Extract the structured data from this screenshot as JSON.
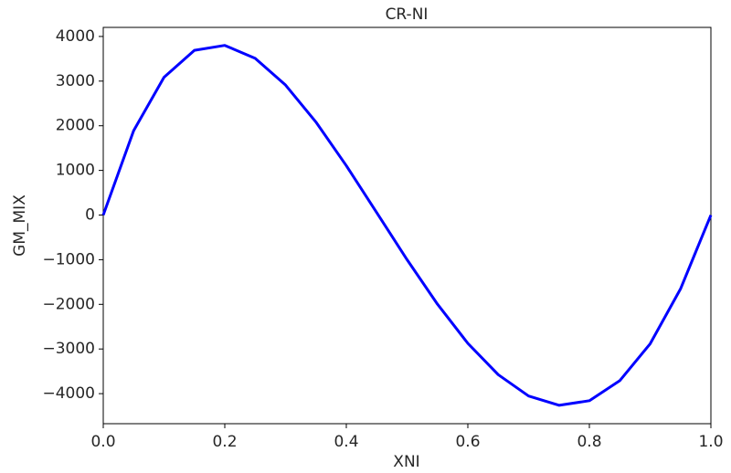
{
  "chart_data": {
    "type": "line",
    "title": "CR-NI",
    "x_label": "XNI",
    "y_label": "GM_MIX",
    "x": [
      0,
      0.05,
      0.1,
      0.15,
      0.2,
      0.25,
      0.3,
      0.35,
      0.4,
      0.45,
      0.5,
      0.55,
      0.6,
      0.65,
      0.7,
      0.75,
      0.8,
      0.85,
      0.9,
      0.95,
      1
    ],
    "series": [
      {
        "name": "GM_MIX",
        "color": "#0000ff",
        "values": [
          0,
          1890,
          3085,
          3689,
          3800,
          3511,
          2911,
          2083,
          1106,
          56,
          -1000,
          -1996,
          -2873,
          -3575,
          -4053,
          -4261,
          -4158,
          -3710,
          -2884,
          -1654,
          0
        ]
      }
    ],
    "xlim": [
      0,
      1
    ],
    "ylim": [
      -4673,
      4203
    ],
    "xticks": [
      {
        "value": 0,
        "label": "0.0"
      },
      {
        "value": 0.2,
        "label": "0.2"
      },
      {
        "value": 0.4,
        "label": "0.4"
      },
      {
        "value": 0.6,
        "label": "0.6"
      },
      {
        "value": 0.8,
        "label": "0.8"
      },
      {
        "value": 1,
        "label": "1.0"
      }
    ],
    "yticks": [
      {
        "value": -4000,
        "label": "−4000"
      },
      {
        "value": -3000,
        "label": "−3000"
      },
      {
        "value": -2000,
        "label": "−2000"
      },
      {
        "value": -1000,
        "label": "−1000"
      },
      0,
      1000,
      2000,
      3000,
      4000
    ],
    "grid": false
  }
}
